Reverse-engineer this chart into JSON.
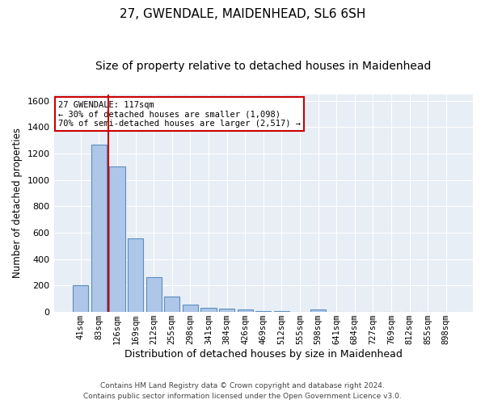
{
  "title": "27, GWENDALE, MAIDENHEAD, SL6 6SH",
  "subtitle": "Size of property relative to detached houses in Maidenhead",
  "xlabel": "Distribution of detached houses by size in Maidenhead",
  "ylabel": "Number of detached properties",
  "categories": [
    "41sqm",
    "83sqm",
    "126sqm",
    "169sqm",
    "212sqm",
    "255sqm",
    "298sqm",
    "341sqm",
    "384sqm",
    "426sqm",
    "469sqm",
    "512sqm",
    "555sqm",
    "598sqm",
    "641sqm",
    "684sqm",
    "727sqm",
    "769sqm",
    "812sqm",
    "855sqm",
    "898sqm"
  ],
  "values": [
    200,
    1270,
    1100,
    555,
    265,
    120,
    55,
    30,
    25,
    20,
    10,
    10,
    0,
    20,
    0,
    0,
    0,
    0,
    0,
    0,
    0
  ],
  "bar_color": "#aec6e8",
  "bar_edge_color": "#5a8fc0",
  "vline_color": "#cc0000",
  "ylim": [
    0,
    1650
  ],
  "yticks": [
    0,
    200,
    400,
    600,
    800,
    1000,
    1200,
    1400,
    1600
  ],
  "annotation_line1": "27 GWENDALE: 117sqm",
  "annotation_line2": "← 30% of detached houses are smaller (1,098)",
  "annotation_line3": "70% of semi-detached houses are larger (2,517) →",
  "annotation_box_color": "#ffffff",
  "annotation_box_edge_color": "#cc0000",
  "footer_line1": "Contains HM Land Registry data © Crown copyright and database right 2024.",
  "footer_line2": "Contains public sector information licensed under the Open Government Licence v3.0.",
  "bg_color": "#e8eef5",
  "title_fontsize": 11,
  "subtitle_fontsize": 10,
  "tick_fontsize": 7.5,
  "ylabel_fontsize": 8.5,
  "xlabel_fontsize": 9
}
